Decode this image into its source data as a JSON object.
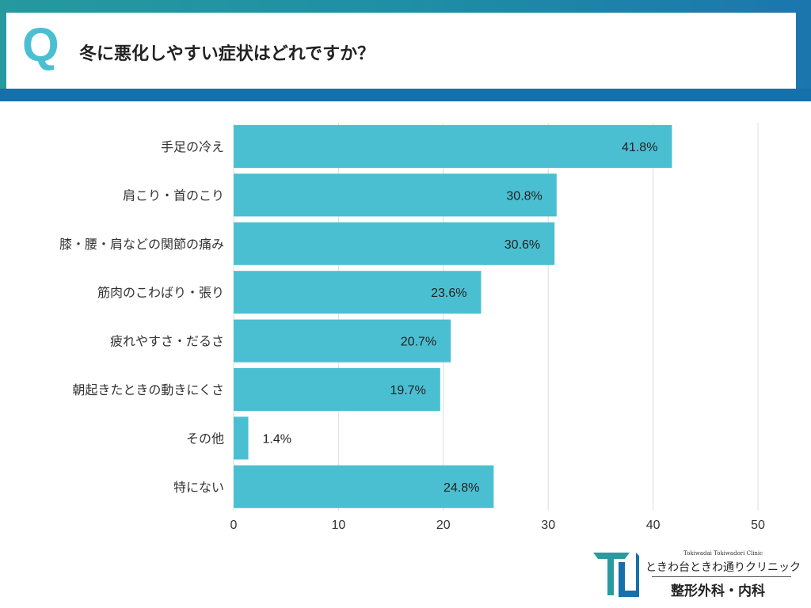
{
  "header": {
    "q_mark": "Q",
    "title": "冬に悪化しやすい症状はどれですか？"
  },
  "colors": {
    "bar": "#4bbfd2",
    "header_teal": "#25999e",
    "header_blue": "#1670a9"
  },
  "logo": {
    "sub": "Tokiwadai Tokiwadori Clinic",
    "name": "ときわ台ときわ通りクリニック",
    "dept": "整形外科・内科",
    "icon": "tc-monogram-icon"
  },
  "chart_data": {
    "type": "bar",
    "orientation": "horizontal",
    "categories": [
      "手足の冷え",
      "肩こり・首のこり",
      "膝・腰・肩などの関節の痛み",
      "筋肉のこわばり・張り",
      "疲れやすさ・だるさ",
      "朝起きたときの動きにくさ",
      "その他",
      "特にない"
    ],
    "values": [
      41.8,
      30.8,
      30.6,
      23.6,
      20.7,
      19.7,
      1.4,
      24.8
    ],
    "data_labels": [
      "41.8%",
      "30.8%",
      "30.6%",
      "23.6%",
      "20.7%",
      "19.7%",
      "1.4%",
      "24.8%"
    ],
    "xlim": [
      0,
      50
    ],
    "xticks": [
      0,
      10,
      20,
      30,
      40,
      50
    ],
    "grid": true
  }
}
